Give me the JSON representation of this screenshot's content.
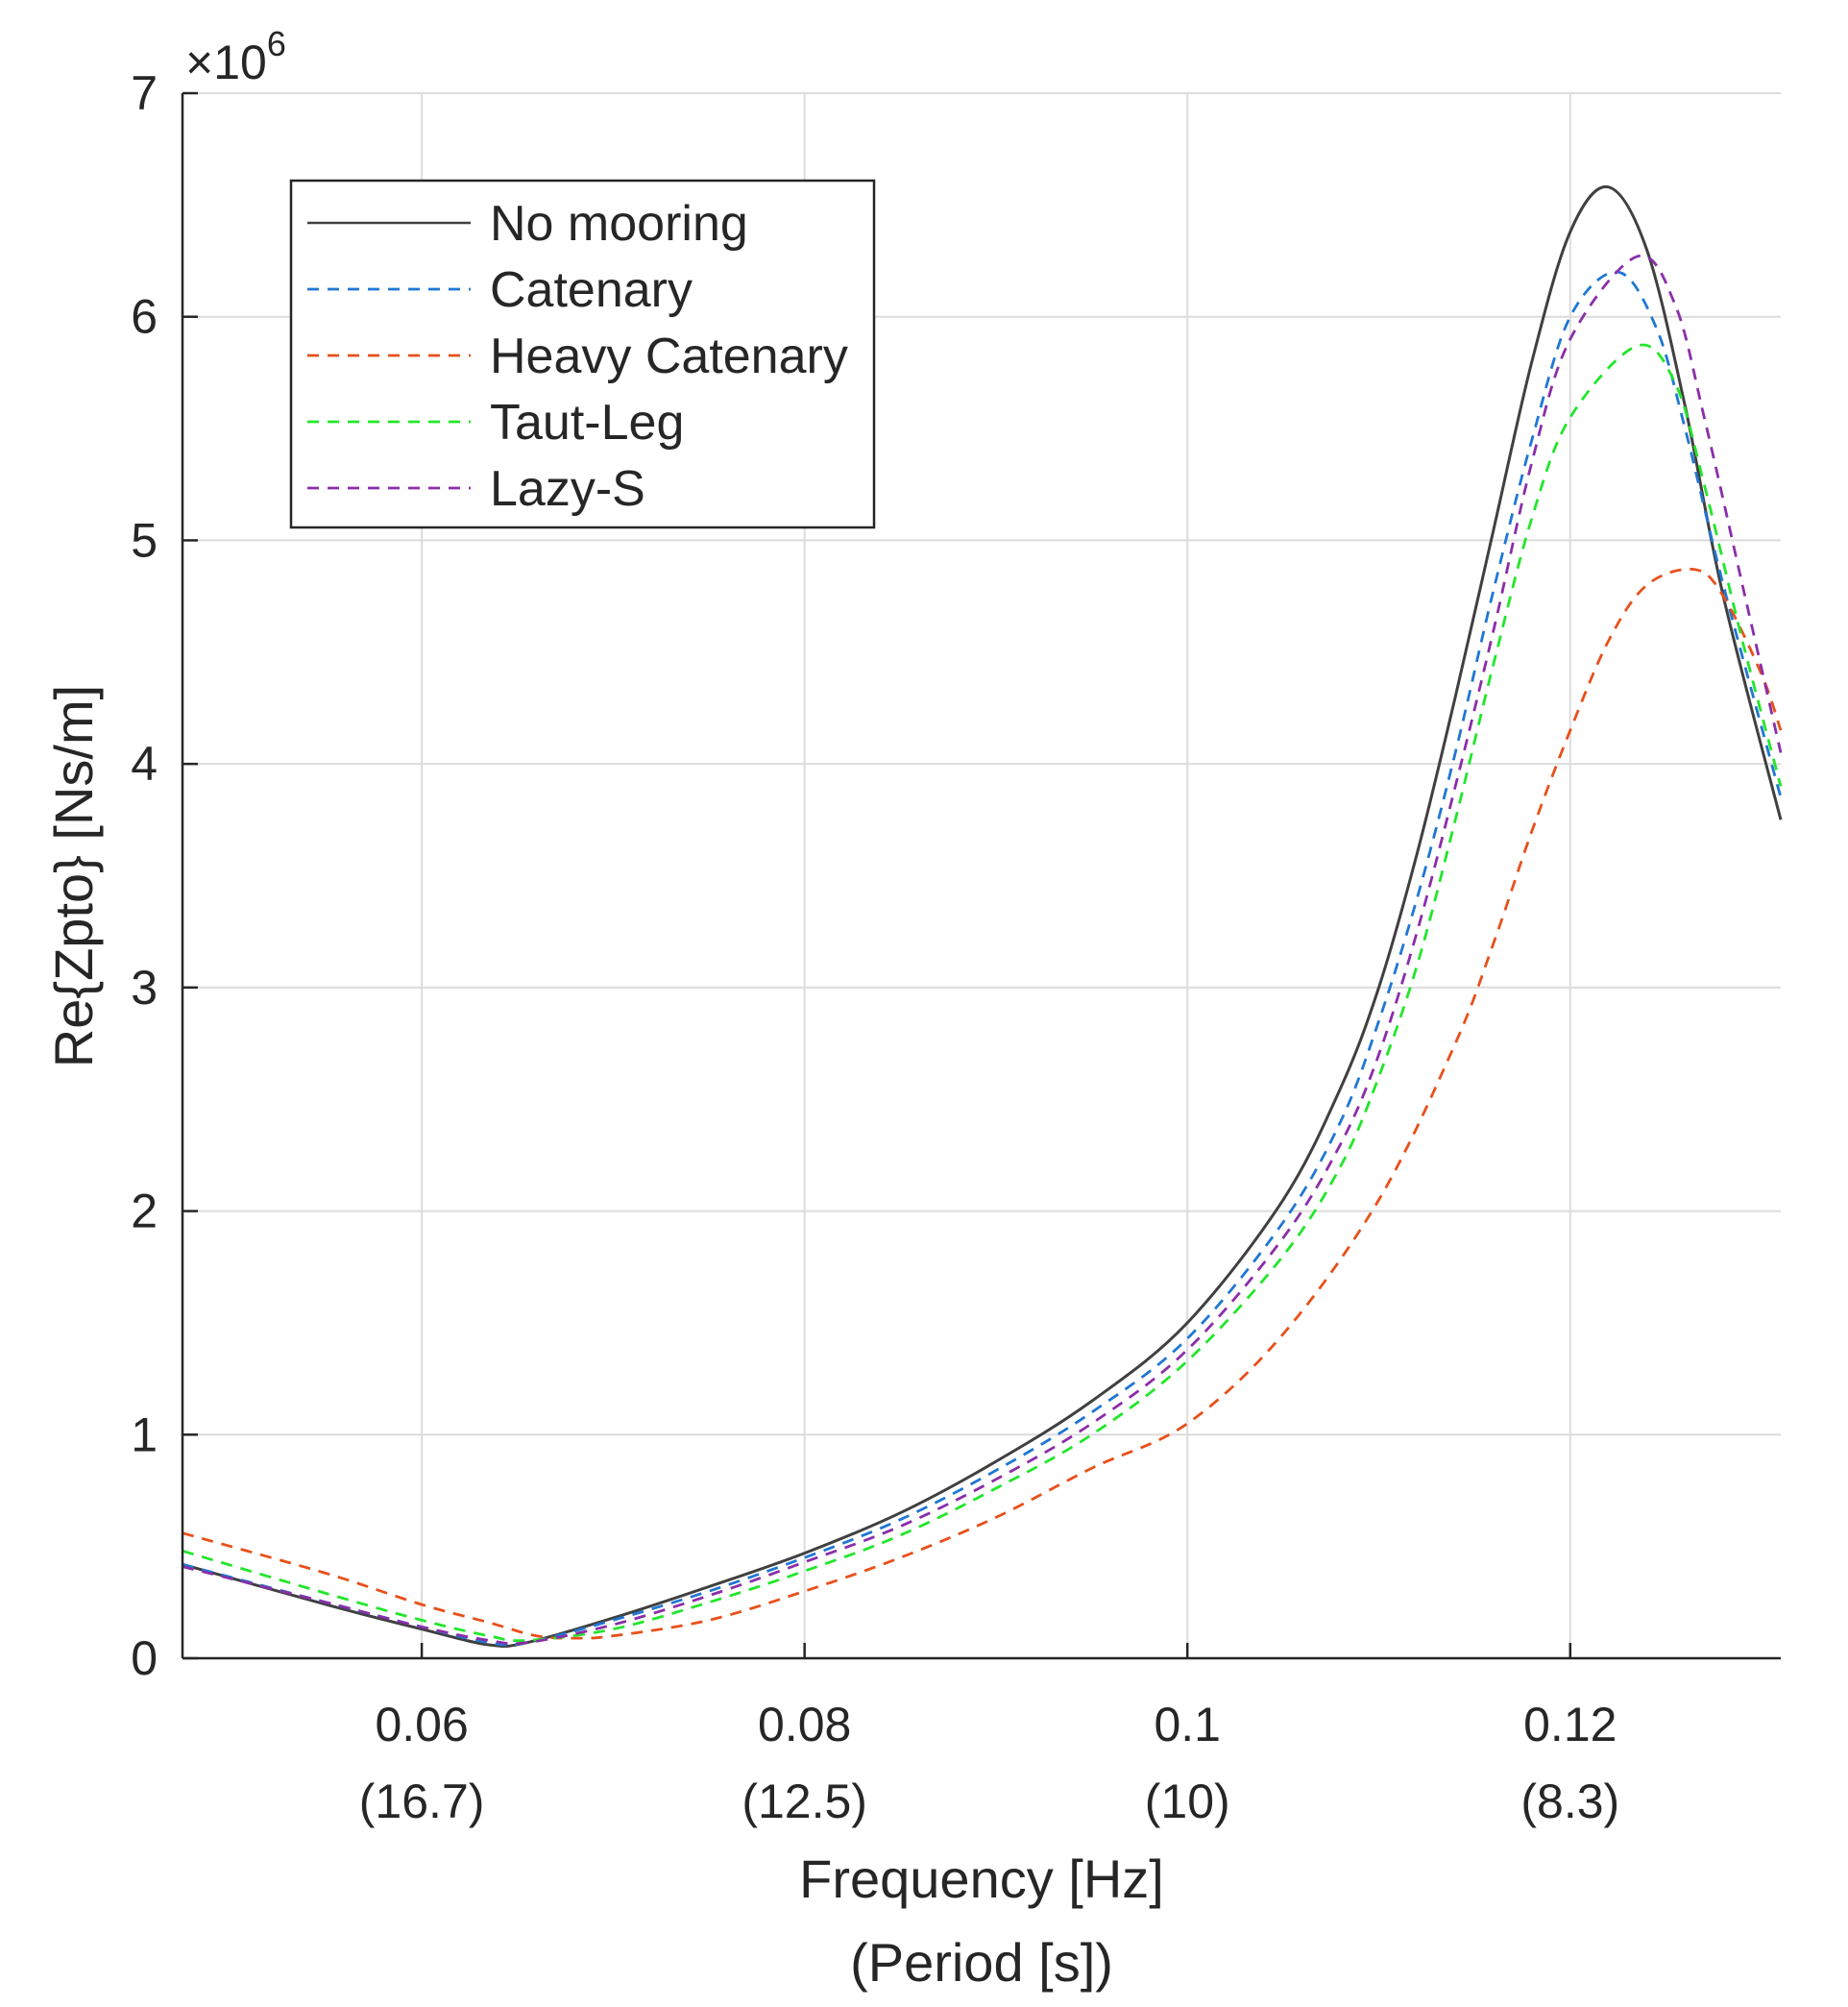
{
  "chart_data": {
    "type": "line",
    "title": "",
    "xlabel": "Frequency [Hz]",
    "xlabel2": "(Period [s])",
    "ylabel": "Re{Zpto} [Ns/m]",
    "y_exponent_prefix": "×10",
    "y_exponent": "6",
    "xlim": [
      0.0475,
      0.131
    ],
    "ylim": [
      0,
      7
    ],
    "grid": true,
    "legend_position": "top-left",
    "x_ticks": [
      0.06,
      0.08,
      0.1,
      0.12
    ],
    "x_tick_labels": [
      "0.06",
      "0.08",
      "0.1",
      "0.12"
    ],
    "x_tick_period_labels": [
      "(16.7)",
      "(12.5)",
      "(10)",
      "(8.3)"
    ],
    "y_ticks": [
      0,
      1,
      2,
      3,
      4,
      5,
      6,
      7
    ],
    "y_tick_labels": [
      "0",
      "1",
      "2",
      "3",
      "4",
      "5",
      "6",
      "7"
    ],
    "series": [
      {
        "name": "No mooring",
        "color": "#404040",
        "dash": "solid",
        "x": [
          0.0475,
          0.055,
          0.06,
          0.0635,
          0.0655,
          0.07,
          0.075,
          0.08,
          0.085,
          0.09,
          0.095,
          0.1,
          0.105,
          0.108,
          0.11,
          0.112,
          0.114,
          0.116,
          0.118,
          0.12,
          0.122,
          0.124,
          0.126,
          0.128,
          0.131
        ],
        "y": [
          0.42,
          0.24,
          0.13,
          0.06,
          0.07,
          0.18,
          0.32,
          0.47,
          0.65,
          0.88,
          1.15,
          1.5,
          2.05,
          2.55,
          3.0,
          3.6,
          4.3,
          5.05,
          5.8,
          6.38,
          6.58,
          6.3,
          5.6,
          4.75,
          3.75
        ]
      },
      {
        "name": "Catenary",
        "color": "#1f77d4",
        "dash": "dashed",
        "x": [
          0.0475,
          0.055,
          0.06,
          0.0635,
          0.0655,
          0.07,
          0.075,
          0.08,
          0.085,
          0.09,
          0.095,
          0.1,
          0.105,
          0.108,
          0.11,
          0.112,
          0.114,
          0.116,
          0.118,
          0.12,
          0.1225,
          0.1245,
          0.126,
          0.128,
          0.131
        ],
        "y": [
          0.42,
          0.25,
          0.14,
          0.07,
          0.07,
          0.17,
          0.3,
          0.45,
          0.62,
          0.84,
          1.1,
          1.43,
          1.95,
          2.4,
          2.85,
          3.4,
          4.05,
          4.78,
          5.45,
          6.0,
          6.2,
          5.95,
          5.5,
          4.8,
          3.85
        ]
      },
      {
        "name": "Heavy Catenary",
        "color": "#e8501a",
        "dash": "dashed",
        "x": [
          0.0475,
          0.055,
          0.06,
          0.0635,
          0.066,
          0.068,
          0.07,
          0.075,
          0.08,
          0.085,
          0.09,
          0.095,
          0.1,
          0.105,
          0.11,
          0.114,
          0.116,
          0.118,
          0.12,
          0.122,
          0.124,
          0.1265,
          0.128,
          0.13,
          0.131
        ],
        "y": [
          0.56,
          0.38,
          0.24,
          0.16,
          0.1,
          0.09,
          0.1,
          0.17,
          0.3,
          0.45,
          0.63,
          0.85,
          1.05,
          1.45,
          2.05,
          2.75,
          3.2,
          3.7,
          4.15,
          4.55,
          4.8,
          4.87,
          4.75,
          4.4,
          4.15
        ]
      },
      {
        "name": "Taut-Leg",
        "color": "#22e62a",
        "dash": "dashed",
        "x": [
          0.0475,
          0.055,
          0.06,
          0.0635,
          0.0655,
          0.07,
          0.075,
          0.08,
          0.085,
          0.09,
          0.095,
          0.1,
          0.105,
          0.108,
          0.11,
          0.112,
          0.114,
          0.116,
          0.118,
          0.12,
          0.1235,
          0.1255,
          0.127,
          0.129,
          0.131
        ],
        "y": [
          0.48,
          0.29,
          0.17,
          0.1,
          0.08,
          0.13,
          0.25,
          0.39,
          0.55,
          0.76,
          1.0,
          1.33,
          1.8,
          2.2,
          2.6,
          3.1,
          3.75,
          4.45,
          5.1,
          5.55,
          5.87,
          5.7,
          5.25,
          4.55,
          3.9
        ]
      },
      {
        "name": "Lazy-S",
        "color": "#8a2ea8",
        "dash": "dashed",
        "x": [
          0.0475,
          0.055,
          0.06,
          0.0635,
          0.0655,
          0.07,
          0.075,
          0.08,
          0.085,
          0.09,
          0.095,
          0.1,
          0.105,
          0.108,
          0.11,
          0.112,
          0.114,
          0.116,
          0.118,
          0.12,
          0.1235,
          0.1255,
          0.127,
          0.129,
          0.131
        ],
        "y": [
          0.41,
          0.25,
          0.14,
          0.08,
          0.07,
          0.15,
          0.28,
          0.43,
          0.59,
          0.8,
          1.05,
          1.38,
          1.88,
          2.3,
          2.7,
          3.25,
          3.9,
          4.6,
          5.35,
          5.9,
          6.27,
          6.05,
          5.55,
          4.8,
          4.05
        ]
      }
    ]
  }
}
